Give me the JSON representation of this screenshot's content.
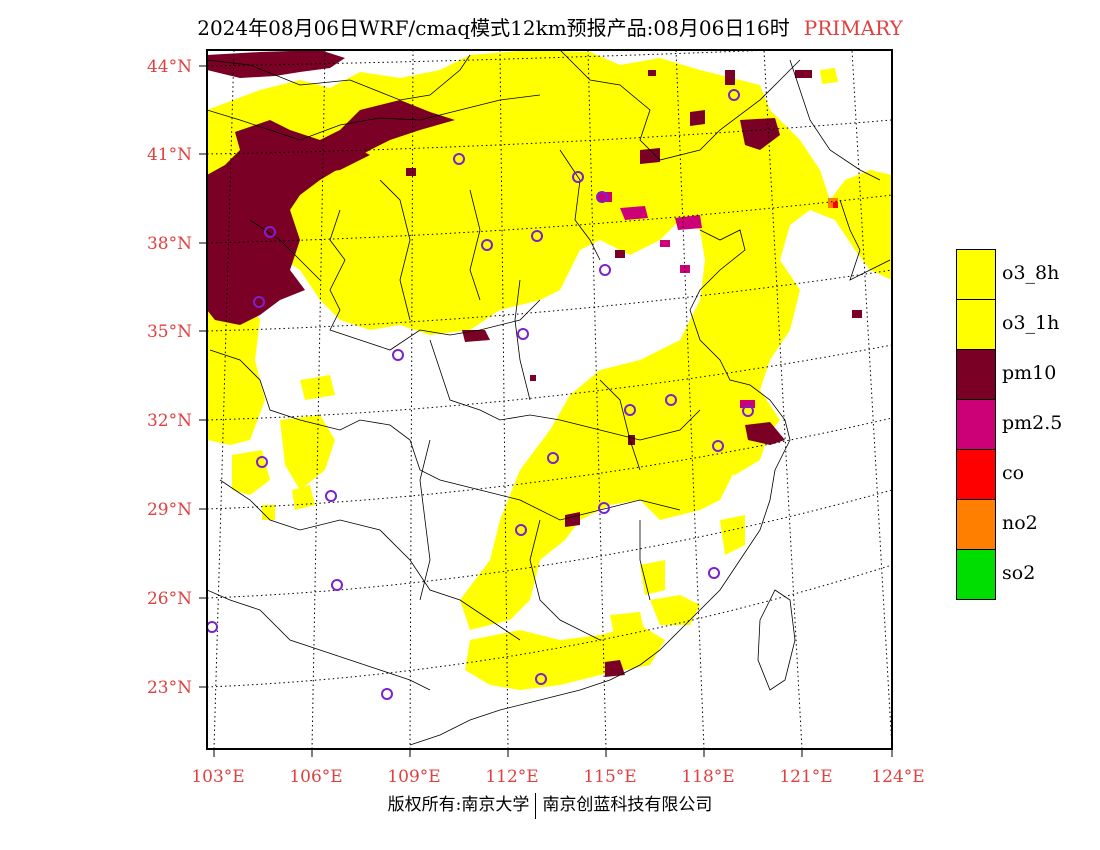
{
  "title": {
    "main": "2024年08月06日WRF/cmaq模式12km预报产品:08月06日16时",
    "tag": "PRIMARY",
    "tag_color": "#e04040"
  },
  "axes": {
    "lat_labels": [
      "44°N",
      "41°N",
      "38°N",
      "35°N",
      "32°N",
      "29°N",
      "26°N",
      "23°N"
    ],
    "lon_labels": [
      "103°E",
      "106°E",
      "109°E",
      "112°E",
      "115°E",
      "118°E",
      "121°E",
      "124°E"
    ],
    "label_color": "#e04040"
  },
  "legend": [
    {
      "label": "o3_8h",
      "color": "#ffff00"
    },
    {
      "label": "o3_1h",
      "color": "#ffff00"
    },
    {
      "label": "pm10",
      "color": "#7a0026"
    },
    {
      "label": "pm2.5",
      "color": "#cc0077"
    },
    {
      "label": "co",
      "color": "#ff0000"
    },
    {
      "label": "no2",
      "color": "#ff8000"
    },
    {
      "label": "so2",
      "color": "#00dd00"
    }
  ],
  "footer": {
    "left": "版权所有:南京大学",
    "right": "南京创蓝科技有限公司"
  }
}
